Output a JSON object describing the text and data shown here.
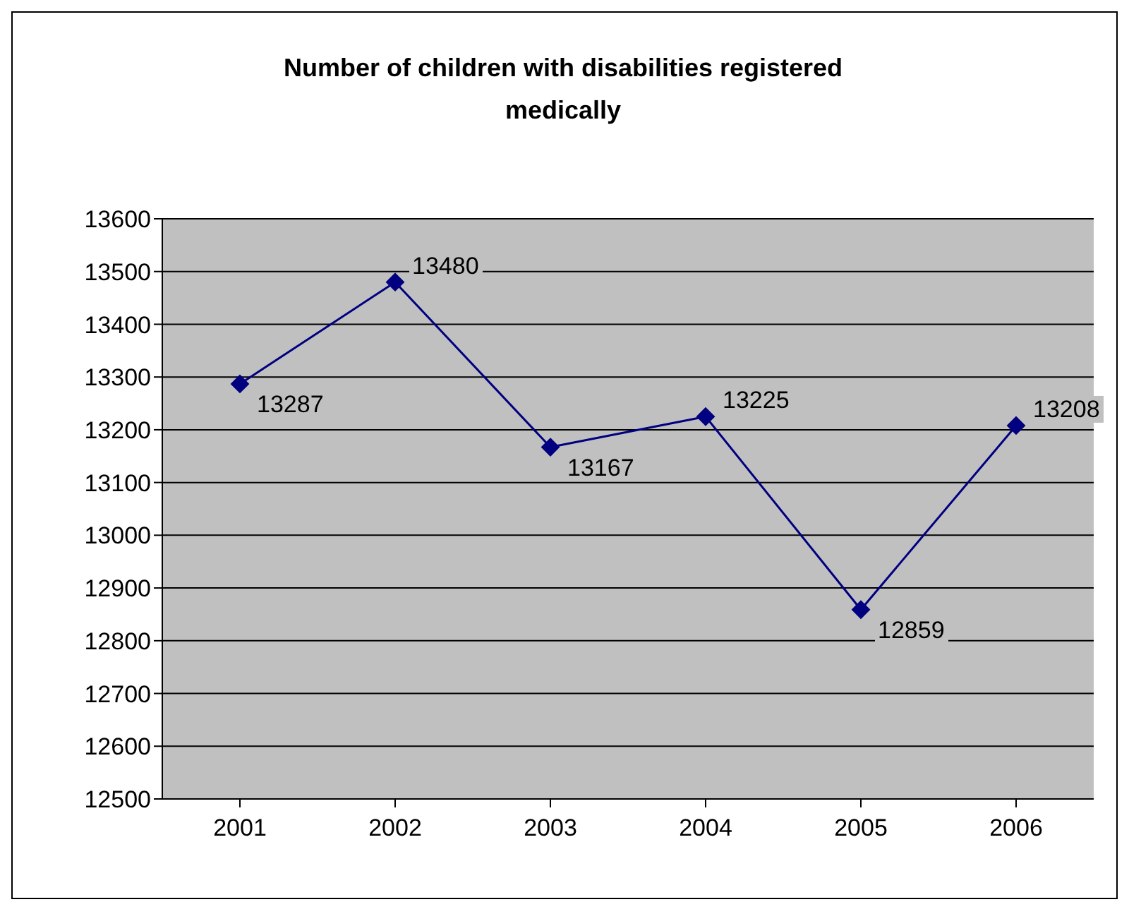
{
  "chart_data": {
    "type": "line",
    "title": "Number of children with disabilities registered medically",
    "categories": [
      "2001",
      "2002",
      "2003",
      "2004",
      "2005",
      "2006"
    ],
    "series": [
      {
        "color": "#000080",
        "values": [
          13287,
          13480,
          13167,
          13225,
          12859,
          13208
        ]
      }
    ],
    "ylim": [
      12500,
      13600
    ],
    "yticks": [
      12500,
      12600,
      12700,
      12800,
      12900,
      13000,
      13100,
      13200,
      13300,
      13400,
      13500,
      13600
    ],
    "grid": "y",
    "marker": "diamond",
    "data_labels": true
  }
}
